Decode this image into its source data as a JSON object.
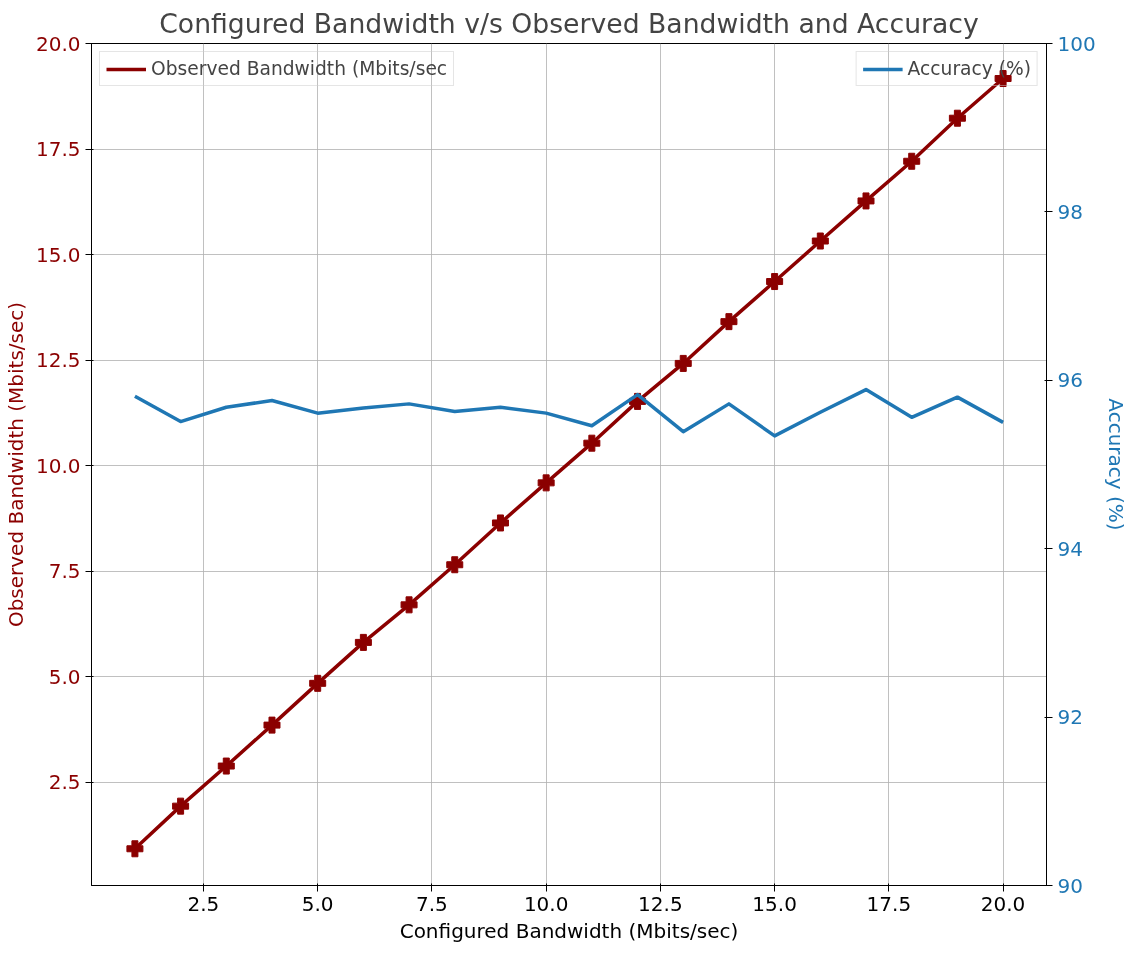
{
  "chart_data": {
    "type": "line",
    "title": "Configured Bandwidth v/s Observed Bandwidth and Accuracy",
    "xlabel": "Configured Bandwidth (Mbits/sec)",
    "ylabel": "Observed Bandwidth (Mbits/sec)",
    "y2label": "Accuracy (%)",
    "x": [
      1,
      2,
      3,
      4,
      5,
      6,
      7,
      8,
      9,
      10,
      11,
      12,
      13,
      14,
      15,
      16,
      17,
      18,
      19,
      20
    ],
    "series": [
      {
        "name": "Observed Bandwidth (Mbits/sec",
        "color": "#8b0000",
        "marker": "cross",
        "values": [
          0.92,
          1.93,
          2.88,
          3.85,
          4.84,
          5.81,
          6.7,
          7.65,
          8.64,
          9.59,
          10.53,
          11.52,
          12.42,
          13.41,
          14.36,
          15.32,
          16.27,
          17.21,
          18.23,
          19.17
        ]
      },
      {
        "name": "Accuracy (%)",
        "color": "#1f77b4",
        "marker": "none",
        "axis": "y2",
        "values": [
          95.81,
          95.51,
          95.68,
          95.76,
          95.61,
          95.67,
          95.72,
          95.63,
          95.68,
          95.61,
          95.46,
          95.83,
          95.39,
          95.72,
          95.34,
          95.62,
          95.89,
          95.56,
          95.8,
          95.5
        ]
      }
    ],
    "xlim": [
      0.05,
      20.95
    ],
    "xticks": [
      2.5,
      {
        "value": 5,
        "label": "5.0"
      },
      7.5,
      {
        "value": 10,
        "label": "10.0"
      },
      12.5,
      {
        "value": 15,
        "label": "15.0"
      },
      17.5,
      {
        "value": 20,
        "label": "20.0"
      }
    ],
    "ylim": [
      0.05,
      20
    ],
    "yticks": [
      2.5,
      {
        "value": 5,
        "label": "5.0"
      },
      7.5,
      {
        "value": 10,
        "label": "10.0"
      },
      12.5,
      {
        "value": 15,
        "label": "15.0"
      },
      17.5,
      {
        "value": 20,
        "label": "20.0"
      }
    ],
    "y2lim": [
      90,
      100
    ],
    "y2ticks": [
      90,
      92,
      94,
      96,
      98,
      100
    ],
    "grid": true,
    "legend": "top",
    "line_style": "solid"
  }
}
